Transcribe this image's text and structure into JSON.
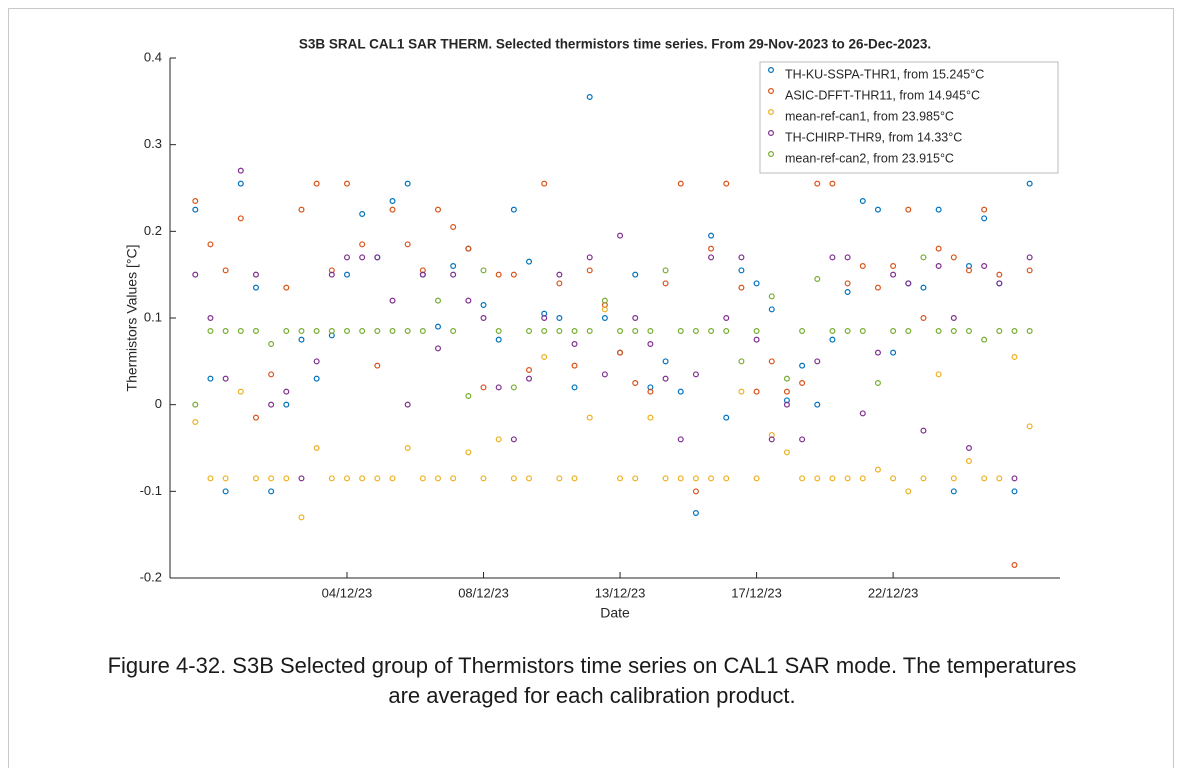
{
  "chart_data": {
    "type": "scatter",
    "title": "S3B SRAL CAL1 SAR THERM. Selected thermistors time series. From 29-Nov-2023 to 26-Dec-2023.",
    "x_label": "Date",
    "y_label": "Thermistors Values [°C]",
    "xlim": [
      "2023-11-28T04:00",
      "2023-12-27T12:00"
    ],
    "xticks": [
      {
        "value": "2023-12-04T00:00",
        "label": "04/12/23"
      },
      {
        "value": "2023-12-08T12:00",
        "label": "08/12/23"
      },
      {
        "value": "2023-12-13T00:00",
        "label": "13/12/23"
      },
      {
        "value": "2023-12-17T12:00",
        "label": "17/12/23"
      },
      {
        "value": "2023-12-22T00:00",
        "label": "22/12/23"
      }
    ],
    "ylim": [
      -0.2,
      0.4
    ],
    "yticks": [
      -0.2,
      -0.1,
      0,
      0.1,
      0.2,
      0.3,
      0.4
    ],
    "legend": "upper right",
    "x": [
      "2023-11-29T00:00",
      "2023-11-29T12:00",
      "2023-11-30T00:00",
      "2023-11-30T12:00",
      "2023-12-01T00:00",
      "2023-12-01T12:00",
      "2023-12-02T00:00",
      "2023-12-02T12:00",
      "2023-12-03T00:00",
      "2023-12-03T12:00",
      "2023-12-04T00:00",
      "2023-12-04T12:00",
      "2023-12-05T00:00",
      "2023-12-05T12:00",
      "2023-12-06T00:00",
      "2023-12-06T12:00",
      "2023-12-07T00:00",
      "2023-12-07T12:00",
      "2023-12-08T00:00",
      "2023-12-08T12:00",
      "2023-12-09T00:00",
      "2023-12-09T12:00",
      "2023-12-10T00:00",
      "2023-12-10T12:00",
      "2023-12-11T00:00",
      "2023-12-11T12:00",
      "2023-12-12T00:00",
      "2023-12-12T12:00",
      "2023-12-13T00:00",
      "2023-12-13T12:00",
      "2023-12-14T00:00",
      "2023-12-14T12:00",
      "2023-12-15T00:00",
      "2023-12-15T12:00",
      "2023-12-16T00:00",
      "2023-12-16T12:00",
      "2023-12-17T00:00",
      "2023-12-17T12:00",
      "2023-12-18T00:00",
      "2023-12-18T12:00",
      "2023-12-19T00:00",
      "2023-12-19T12:00",
      "2023-12-20T00:00",
      "2023-12-20T12:00",
      "2023-12-21T00:00",
      "2023-12-21T12:00",
      "2023-12-22T00:00",
      "2023-12-22T12:00",
      "2023-12-23T00:00",
      "2023-12-23T12:00",
      "2023-12-24T00:00",
      "2023-12-24T12:00",
      "2023-12-25T00:00",
      "2023-12-25T12:00",
      "2023-12-26T00:00",
      "2023-12-26T12:00"
    ],
    "series": [
      {
        "name": "TH-KU-SSPA-THR1, from 15.245°C",
        "color": "#0072bd",
        "values": [
          0.225,
          0.03,
          -0.1,
          0.255,
          0.135,
          -0.1,
          0.0,
          0.075,
          0.03,
          0.08,
          0.15,
          0.22,
          0.17,
          0.235,
          0.255,
          0.15,
          0.09,
          0.16,
          0.18,
          0.115,
          0.075,
          0.225,
          0.165,
          0.105,
          0.1,
          0.02,
          0.355,
          0.1,
          0.06,
          0.15,
          0.02,
          0.05,
          0.015,
          -0.125,
          0.195,
          -0.015,
          0.155,
          0.14,
          0.11,
          0.005,
          0.045,
          0.0,
          0.075,
          0.13,
          0.235,
          0.225,
          0.06,
          0.14,
          0.135,
          0.225,
          -0.1,
          0.16,
          0.215,
          0.14,
          -0.1,
          0.255
        ]
      },
      {
        "name": "ASIC-DFFT-THR11, from 14.945°C",
        "color": "#d95319",
        "values": [
          0.235,
          0.185,
          0.155,
          0.215,
          -0.015,
          0.035,
          0.135,
          0.225,
          0.255,
          0.155,
          0.255,
          0.185,
          0.045,
          0.225,
          0.185,
          0.155,
          0.225,
          0.205,
          0.18,
          0.02,
          0.15,
          0.15,
          0.04,
          0.255,
          0.14,
          0.045,
          0.155,
          0.115,
          0.06,
          0.025,
          0.015,
          0.14,
          0.255,
          -0.1,
          0.18,
          0.255,
          0.135,
          0.015,
          0.05,
          0.015,
          0.025,
          0.255,
          0.255,
          0.14,
          0.16,
          0.135,
          0.16,
          0.225,
          0.1,
          0.18,
          0.17,
          0.155,
          0.225,
          0.15,
          -0.185,
          0.155
        ]
      },
      {
        "name": "mean-ref-can1, from 23.985°C",
        "color": "#edb120",
        "values": [
          -0.02,
          -0.085,
          -0.085,
          0.015,
          -0.085,
          -0.085,
          -0.085,
          -0.13,
          -0.05,
          -0.085,
          -0.085,
          -0.085,
          -0.085,
          -0.085,
          -0.05,
          -0.085,
          -0.085,
          -0.085,
          -0.055,
          -0.085,
          -0.04,
          -0.085,
          -0.085,
          0.055,
          -0.085,
          -0.085,
          -0.015,
          0.11,
          -0.085,
          -0.085,
          -0.015,
          -0.085,
          -0.085,
          -0.085,
          -0.085,
          -0.085,
          0.015,
          -0.085,
          -0.035,
          -0.055,
          -0.085,
          -0.085,
          -0.085,
          -0.085,
          -0.085,
          -0.075,
          -0.085,
          -0.1,
          -0.085,
          0.035,
          -0.085,
          -0.065,
          -0.085,
          -0.085,
          0.055,
          -0.025
        ]
      },
      {
        "name": "TH-CHIRP-THR9, from 14.33°C",
        "color": "#7e2f8e",
        "values": [
          0.15,
          0.1,
          0.03,
          0.27,
          0.15,
          0.0,
          0.015,
          -0.085,
          0.05,
          0.15,
          0.17,
          0.17,
          0.17,
          0.12,
          0.0,
          0.15,
          0.065,
          0.15,
          0.12,
          0.1,
          0.02,
          -0.04,
          0.03,
          0.1,
          0.15,
          0.07,
          0.17,
          0.035,
          0.195,
          0.1,
          0.07,
          0.03,
          -0.04,
          0.035,
          0.17,
          0.1,
          0.17,
          0.075,
          -0.04,
          0.0,
          -0.04,
          0.05,
          0.17,
          0.17,
          -0.01,
          0.06,
          0.15,
          0.14,
          -0.03,
          0.16,
          0.1,
          -0.05,
          0.16,
          0.14,
          -0.085,
          0.17
        ]
      },
      {
        "name": "mean-ref-can2, from 23.915°C",
        "color": "#77ac30",
        "values": [
          0.0,
          0.085,
          0.085,
          0.085,
          0.085,
          0.07,
          0.085,
          0.085,
          0.085,
          0.085,
          0.085,
          0.085,
          0.085,
          0.085,
          0.085,
          0.085,
          0.12,
          0.085,
          0.01,
          0.155,
          0.085,
          0.02,
          0.085,
          0.085,
          0.085,
          0.085,
          0.085,
          0.12,
          0.085,
          0.085,
          0.085,
          0.155,
          0.085,
          0.085,
          0.085,
          0.085,
          0.05,
          0.085,
          0.125,
          0.03,
          0.085,
          0.145,
          0.085,
          0.085,
          0.085,
          0.025,
          0.085,
          0.085,
          0.17,
          0.085,
          0.085,
          0.085,
          0.075,
          0.085,
          0.085,
          0.085
        ]
      }
    ]
  },
  "caption": [
    "Figure 4-32. S3B Selected group of Thermistors time series on CAL1 SAR mode. The temperatures",
    "are averaged for each calibration product."
  ]
}
